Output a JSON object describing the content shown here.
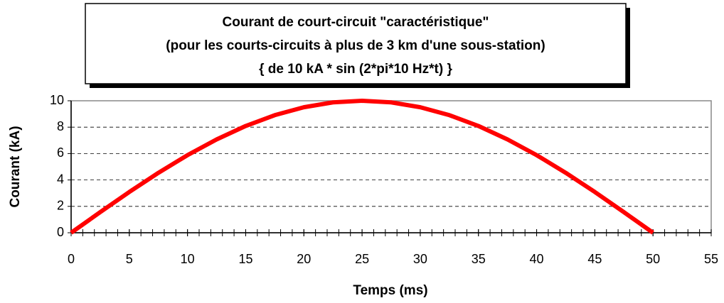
{
  "chart_data": {
    "type": "line",
    "title": [
      "Courant de court-circuit \"caractéristique\"",
      "(pour les courts-circuits à plus de 3 km d'une sous-station)",
      "{ de 10 kA * sin (2*pi*10 Hz*t) }"
    ],
    "x_label": "Temps (ms)",
    "y_label": "Courant (kA)",
    "x": [
      0,
      2.5,
      5,
      7.5,
      10,
      12.5,
      15,
      17.5,
      20,
      22.5,
      25,
      27.5,
      30,
      32.5,
      35,
      37.5,
      40,
      42.5,
      45,
      47.5,
      50
    ],
    "series": [
      {
        "color": "#ff0000",
        "values": [
          0,
          1.56,
          3.09,
          4.54,
          5.88,
          7.07,
          8.09,
          8.91,
          9.51,
          9.88,
          10,
          9.88,
          9.51,
          8.91,
          8.09,
          7.07,
          5.88,
          4.54,
          3.09,
          1.56,
          0
        ]
      }
    ],
    "xlim": [
      0,
      55
    ],
    "xticks": [
      0,
      5,
      10,
      15,
      20,
      25,
      30,
      35,
      40,
      45,
      50,
      55
    ],
    "x_minor_step": 1,
    "ylim": [
      0,
      10
    ],
    "yticks": [
      0,
      2,
      4,
      6,
      8,
      10
    ],
    "grid": true
  }
}
